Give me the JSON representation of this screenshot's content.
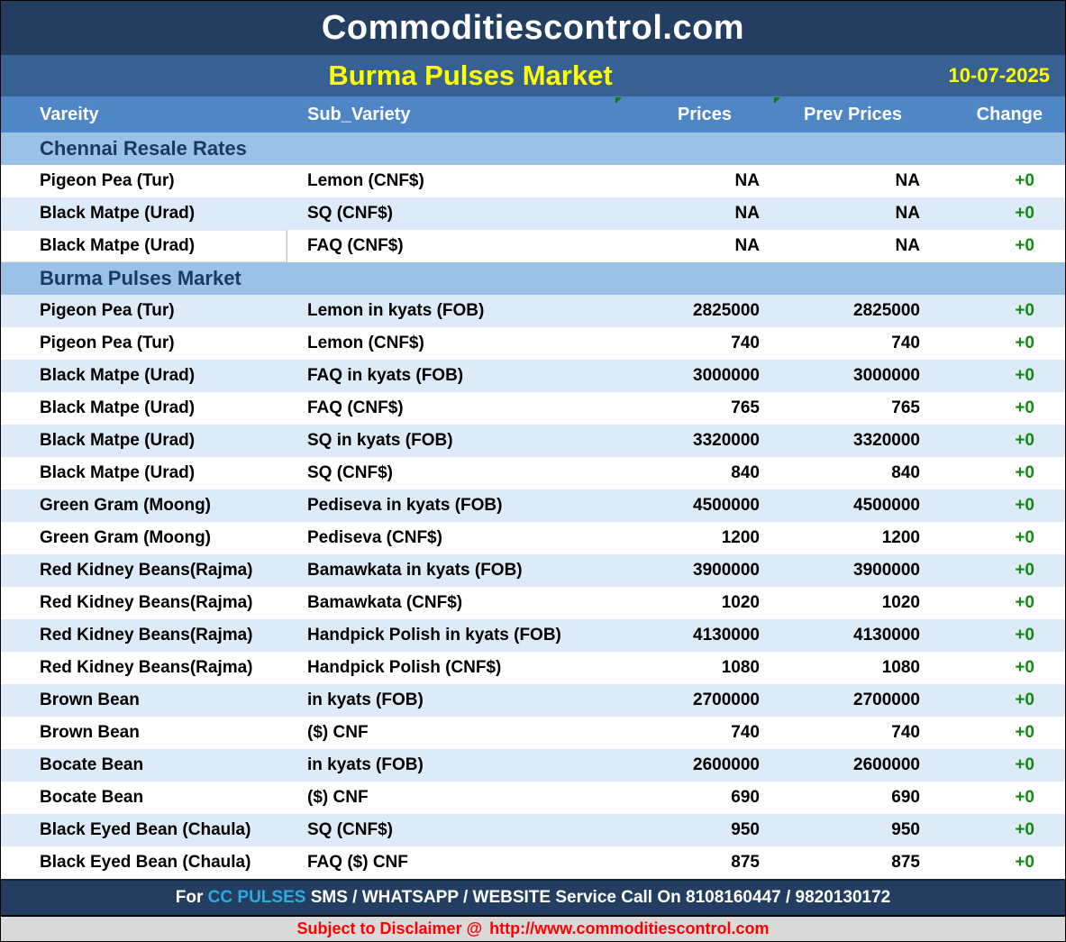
{
  "header": {
    "site_title": "Commoditiescontrol.com",
    "report_title": "Burma Pulses Market",
    "date": "10-07-2025"
  },
  "table": {
    "columns": [
      "Vareity",
      "Sub_Variety",
      "Prices",
      "Prev Prices",
      "Change"
    ],
    "sections": [
      {
        "title": "Chennai Resale Rates",
        "rows": [
          {
            "variety": "Pigeon Pea (Tur)",
            "sub_variety": "Lemon (CNF$)",
            "price": "NA",
            "prev_price": "NA",
            "change": "+0"
          },
          {
            "variety": "Black Matpe (Urad)",
            "sub_variety": "SQ (CNF$)",
            "price": "NA",
            "prev_price": "NA",
            "change": "+0"
          },
          {
            "variety": "Black Matpe (Urad)",
            "sub_variety": "FAQ (CNF$)",
            "price": "NA",
            "prev_price": "NA",
            "change": "+0",
            "selected": true
          }
        ]
      },
      {
        "title": "Burma Pulses Market",
        "rows": [
          {
            "variety": "Pigeon Pea (Tur)",
            "sub_variety": "Lemon in kyats (FOB)",
            "price": "2825000",
            "prev_price": "2825000",
            "change": "+0"
          },
          {
            "variety": "Pigeon Pea (Tur)",
            "sub_variety": "Lemon (CNF$)",
            "price": "740",
            "prev_price": "740",
            "change": "+0"
          },
          {
            "variety": "Black Matpe (Urad)",
            "sub_variety": "FAQ in kyats (FOB)",
            "price": "3000000",
            "prev_price": "3000000",
            "change": "+0"
          },
          {
            "variety": "Black Matpe (Urad)",
            "sub_variety": "FAQ (CNF$)",
            "price": "765",
            "prev_price": "765",
            "change": "+0"
          },
          {
            "variety": "Black Matpe (Urad)",
            "sub_variety": "SQ in kyats (FOB)",
            "price": "3320000",
            "prev_price": "3320000",
            "change": "+0"
          },
          {
            "variety": "Black Matpe (Urad)",
            "sub_variety": "SQ (CNF$)",
            "price": "840",
            "prev_price": "840",
            "change": "+0"
          },
          {
            "variety": "Green Gram (Moong)",
            "sub_variety": "Pediseva in kyats (FOB)",
            "price": "4500000",
            "prev_price": "4500000",
            "change": "+0"
          },
          {
            "variety": "Green Gram (Moong)",
            "sub_variety": "Pediseva (CNF$)",
            "price": "1200",
            "prev_price": "1200",
            "change": "+0"
          },
          {
            "variety": "Red Kidney Beans(Rajma)",
            "sub_variety": "Bamawkata in kyats (FOB)",
            "price": "3900000",
            "prev_price": "3900000",
            "change": "+0"
          },
          {
            "variety": "Red Kidney Beans(Rajma)",
            "sub_variety": "Bamawkata (CNF$)",
            "price": "1020",
            "prev_price": "1020",
            "change": "+0"
          },
          {
            "variety": "Red Kidney Beans(Rajma)",
            "sub_variety": "Handpick Polish in kyats (FOB)",
            "price": "4130000",
            "prev_price": "4130000",
            "change": "+0"
          },
          {
            "variety": "Red Kidney Beans(Rajma)",
            "sub_variety": "Handpick Polish (CNF$)",
            "price": "1080",
            "prev_price": "1080",
            "change": "+0"
          },
          {
            "variety": "Brown Bean",
            "sub_variety": "in kyats (FOB)",
            "price": "2700000",
            "prev_price": "2700000",
            "change": "+0"
          },
          {
            "variety": "Brown Bean",
            "sub_variety": "($) CNF",
            "price": "740",
            "prev_price": "740",
            "change": "+0"
          },
          {
            "variety": "Bocate Bean",
            "sub_variety": "in kyats (FOB)",
            "price": "2600000",
            "prev_price": "2600000",
            "change": "+0"
          },
          {
            "variety": "Bocate Bean",
            "sub_variety": "($) CNF",
            "price": "690",
            "prev_price": "690",
            "change": "+0"
          },
          {
            "variety": "Black Eyed Bean (Chaula)",
            "sub_variety": "SQ (CNF$)",
            "price": "950",
            "prev_price": "950",
            "change": "+0"
          },
          {
            "variety": "Black Eyed Bean (Chaula)",
            "sub_variety": "FAQ ($) CNF",
            "price": "875",
            "prev_price": "875",
            "change": "+0"
          }
        ]
      }
    ]
  },
  "footer": {
    "prefix": "For ",
    "brand": "CC PULSES",
    "suffix": " SMS / WHATSAPP / WEBSITE Service Call On 8108160447 / 9820130172"
  },
  "disclaimer": {
    "label": "Subject to Disclaimer @",
    "url": "http://www.commoditiescontrol.com"
  },
  "colors": {
    "top_navy": "#243e61",
    "title_steel_blue": "#366192",
    "header_blue": "#4f86c6",
    "section_blue": "#9ac1e6",
    "row_alt_blue": "#dcebf7",
    "title_yellow": "#ffff00",
    "change_positive_green": "#128a12",
    "comment_indicator_green": "#107c10",
    "brand_cyan": "#29abe2",
    "disclaimer_red": "#ff0000",
    "disclaimer_gray": "#d9d9d9"
  }
}
